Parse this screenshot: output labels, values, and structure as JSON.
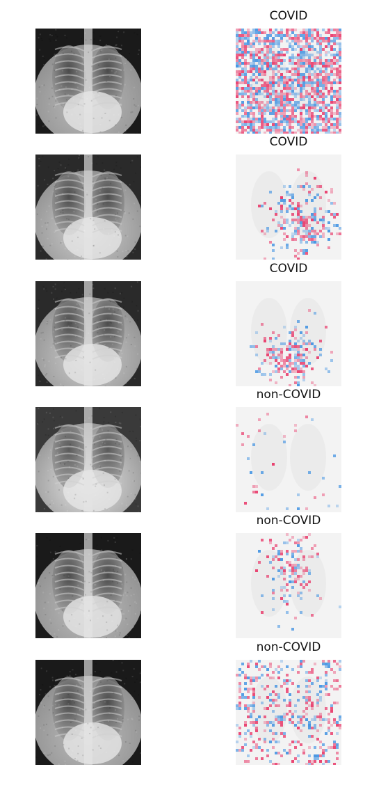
{
  "panels": [
    {
      "label": "COVID",
      "xray_style": "dark",
      "map_intensity": 0.95,
      "map_focus": "diffuse"
    },
    {
      "label": "COVID",
      "xray_style": "standard",
      "map_intensity": 0.75,
      "map_focus": "lower-right"
    },
    {
      "label": "COVID",
      "xray_style": "standard",
      "map_intensity": 0.8,
      "map_focus": "lower-center"
    },
    {
      "label": "non-COVID",
      "xray_style": "bright",
      "map_intensity": 0.1,
      "map_focus": "faint"
    },
    {
      "label": "non-COVID",
      "xray_style": "dark",
      "map_intensity": 0.55,
      "map_focus": "upper-center"
    },
    {
      "label": "non-COVID",
      "xray_style": "dark",
      "map_intensity": 0.35,
      "map_focus": "diffuse"
    }
  ],
  "colors": {
    "positive": "#e8245a",
    "negative": "#2a86e0",
    "background": "#ffffff"
  }
}
